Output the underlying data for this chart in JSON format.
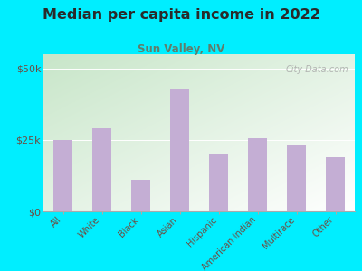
{
  "title": "Median per capita income in 2022",
  "subtitle": "Sun Valley, NV",
  "categories": [
    "All",
    "White",
    "Black",
    "Asian",
    "Hispanic",
    "American Indian",
    "Multirace",
    "Other"
  ],
  "values": [
    25000,
    29000,
    11000,
    43000,
    20000,
    25500,
    23000,
    19000
  ],
  "bar_color": "#c4aed4",
  "background_outer": "#00eeff",
  "grad_top_left": "#c8e6c9",
  "grad_bottom_right": "#ffffff",
  "title_color": "#2a2a2a",
  "subtitle_color": "#607d6b",
  "tick_label_color": "#6d4c41",
  "ytick_labels": [
    "$0",
    "$25k",
    "$50k"
  ],
  "ytick_values": [
    0,
    25000,
    50000
  ],
  "ylim": [
    0,
    55000
  ],
  "watermark": "City-Data.com"
}
